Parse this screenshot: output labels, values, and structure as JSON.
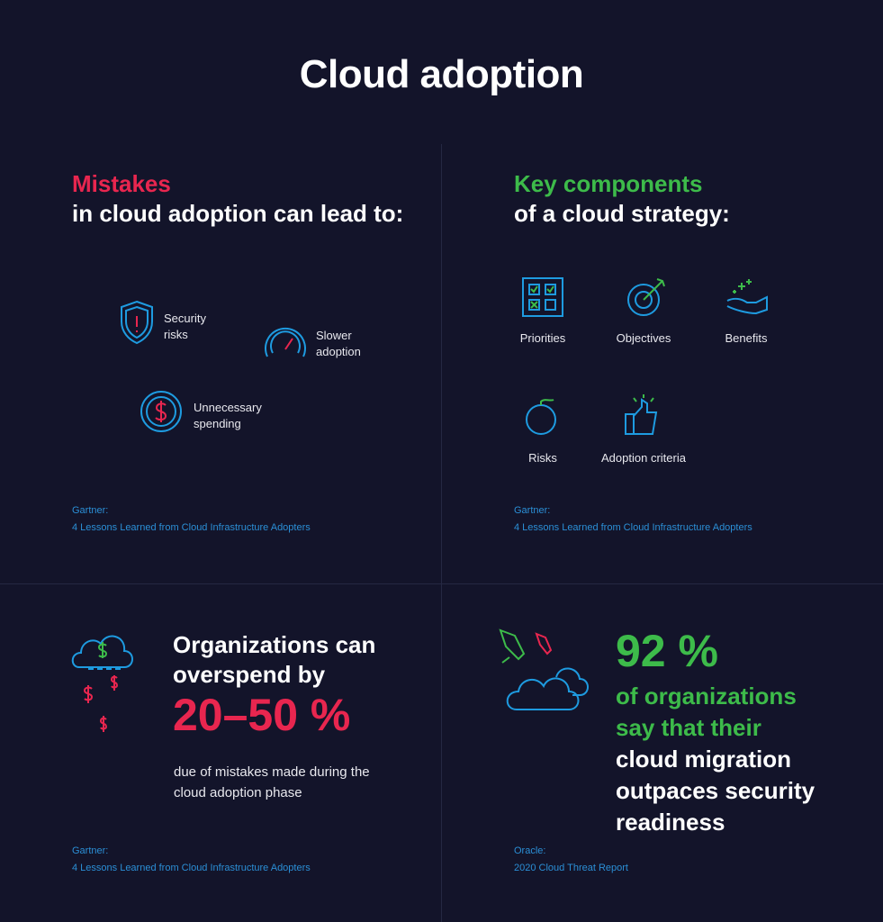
{
  "title": "Cloud adoption",
  "mistakes": {
    "heading_highlight": "Mistakes",
    "heading_rest": "in cloud adoption can lead to:",
    "items": [
      "Security risks",
      "Slower adoption",
      "Unnecessary spending"
    ],
    "source_org": "Gartner:",
    "source_title": "4 Lessons Learned from Cloud Infrastructure Adopters"
  },
  "strategy": {
    "heading_highlight": "Key components",
    "heading_rest": "of a cloud strategy:",
    "items": [
      "Priorities",
      "Objectives",
      "Benefits",
      "Risks",
      "Adoption criteria"
    ],
    "source_org": "Gartner:",
    "source_title": "4 Lessons Learned from Cloud Infrastructure Adopters"
  },
  "overspend": {
    "lead": "Organizations can overspend by",
    "figure": "20–50 %",
    "description": "due of mistakes made during the cloud adoption phase",
    "source_org": "Gartner:",
    "source_title": "4 Lessons Learned from Cloud Infrastructure Adopters"
  },
  "migration": {
    "figure": "92 %",
    "highlight": "of organizations say that their",
    "rest": "cloud migration outpaces security readiness",
    "source_org": "Oracle:",
    "source_title": "2020 Cloud Threat Report"
  }
}
